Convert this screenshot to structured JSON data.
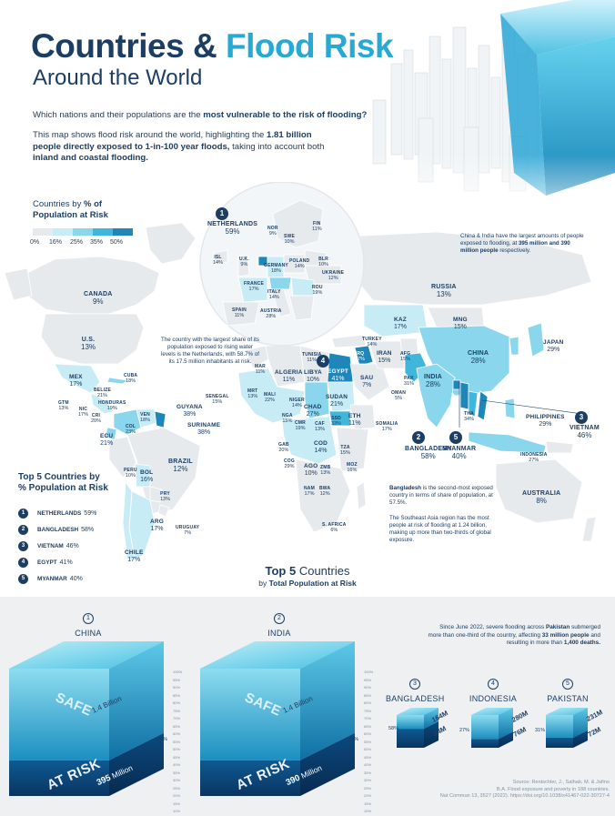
{
  "header": {
    "title_part1": "Countries &",
    "title_part2": "Flood Risk",
    "subtitle": "Around the World",
    "lead_text": "Which nations and their populations are the ",
    "lead_bold": "most vulnerable to the risk of flooding?",
    "para_1": "This map shows flood risk around the world, highlighting the ",
    "para_bold_1": "1.81 billion people directly exposed to 1-in-100 year floods,",
    "para_2": " taking into account both ",
    "para_bold_2": "inland and coastal flooding."
  },
  "legend": {
    "title_1": "Countries by ",
    "title_bold": "% of",
    "title_2": "Population at Risk",
    "ticks": [
      "0%",
      "16%",
      "25%",
      "35%",
      "50%"
    ],
    "colors": [
      "#e6eaed",
      "#c7ecf5",
      "#8ad6ec",
      "#3fb6da",
      "#1e86b8"
    ]
  },
  "colors": {
    "navy": "#1d3e63",
    "accent": "#27a9d4",
    "land": "#dde3e8",
    "land_stroke": "#ffffff",
    "water_dark": "#0b3b6b",
    "bottom_bg": "#eef0f2"
  },
  "map_labels": {
    "netherlands": {
      "name": "NETHERLANDS",
      "value": "59%"
    },
    "norway": {
      "name": "NOR",
      "value": "9%"
    },
    "sweden": {
      "name": "SWE",
      "value": "10%"
    },
    "finland": {
      "name": "FIN",
      "value": "11%"
    },
    "iceland": {
      "name": "ISL",
      "value": "14%"
    },
    "uk": {
      "name": "U.K.",
      "value": "9%"
    },
    "germany": {
      "name": "GERMANY",
      "value": "18%"
    },
    "poland": {
      "name": "POLAND",
      "value": "14%"
    },
    "belarus": {
      "name": "BLR",
      "value": "10%"
    },
    "ukraine": {
      "name": "UKRAINE",
      "value": "12%"
    },
    "france": {
      "name": "FRANCE",
      "value": "17%"
    },
    "italy": {
      "name": "ITALY",
      "value": "14%"
    },
    "romania": {
      "name": "ROU",
      "value": "19%"
    },
    "spain": {
      "name": "SPAIN",
      "value": "11%"
    },
    "austria": {
      "name": "AUSTRIA",
      "value": "28%"
    },
    "russia": {
      "name": "RUSSIA",
      "value": "13%"
    },
    "canada": {
      "name": "CANADA",
      "value": "9%"
    },
    "us": {
      "name": "U.S.",
      "value": "13%"
    },
    "mexico": {
      "name": "MEX",
      "value": "17%"
    },
    "cuba": {
      "name": "CUBA",
      "value": "18%"
    },
    "belize": {
      "name": "BELIZE",
      "value": "21%"
    },
    "honduras": {
      "name": "HONDURAS",
      "value": "19%"
    },
    "guatemala": {
      "name": "GTM",
      "value": "13%"
    },
    "nicaragua": {
      "name": "NIC",
      "value": "17%"
    },
    "costa_rica": {
      "name": "CRI",
      "value": "20%"
    },
    "ecuador": {
      "name": "ECU",
      "value": "21%"
    },
    "colombia": {
      "name": "COL",
      "value": "23%"
    },
    "venezuela": {
      "name": "VEN",
      "value": "18%"
    },
    "guyana": {
      "name": "GUYANA",
      "value": "38%"
    },
    "suriname": {
      "name": "SURINAME",
      "value": "38%"
    },
    "peru": {
      "name": "PERU",
      "value": "10%"
    },
    "bolivia": {
      "name": "BOL",
      "value": "16%"
    },
    "brazil": {
      "name": "BRAZIL",
      "value": "12%"
    },
    "paraguay": {
      "name": "PRY",
      "value": "13%"
    },
    "argentina": {
      "name": "ARG",
      "value": "17%"
    },
    "uruguay": {
      "name": "URUGUAY",
      "value": "7%"
    },
    "chile": {
      "name": "CHILE",
      "value": "17%"
    },
    "morocco": {
      "name": "MAR",
      "value": "11%"
    },
    "algeria": {
      "name": "ALGERIA",
      "value": "11%"
    },
    "tunisia": {
      "name": "TUNISIA",
      "value": "11%"
    },
    "libya": {
      "name": "LIBYA",
      "value": "10%"
    },
    "egypt": {
      "name": "EGYPT",
      "value": "41%"
    },
    "senegal": {
      "name": "SENEGAL",
      "value": "15%"
    },
    "mauritania": {
      "name": "MRT",
      "value": "13%"
    },
    "mali": {
      "name": "MALI",
      "value": "22%"
    },
    "niger": {
      "name": "NIGER",
      "value": "14%"
    },
    "nigeria": {
      "name": "NGA",
      "value": "15%"
    },
    "chad": {
      "name": "CHAD",
      "value": "27%"
    },
    "sudan": {
      "name": "SUDAN",
      "value": "21%"
    },
    "south_sudan": {
      "name": "SSD",
      "value": "33%"
    },
    "ethiopia": {
      "name": "ETH",
      "value": "11%"
    },
    "somalia": {
      "name": "SOMALIA",
      "value": "17%"
    },
    "cameroon": {
      "name": "CMR",
      "value": "19%"
    },
    "car": {
      "name": "CAF",
      "value": "13%"
    },
    "gabon": {
      "name": "GAB",
      "value": "20%"
    },
    "congo": {
      "name": "COG",
      "value": "29%"
    },
    "drc": {
      "name": "COD",
      "value": "14%"
    },
    "tanzania": {
      "name": "TZA",
      "value": "15%"
    },
    "angola": {
      "name": "AGO",
      "value": "10%"
    },
    "zambia": {
      "name": "ZMB",
      "value": "13%"
    },
    "mozambique": {
      "name": "MOZ",
      "value": "16%"
    },
    "namibia": {
      "name": "NAM",
      "value": "17%"
    },
    "botswana": {
      "name": "BWA",
      "value": "12%"
    },
    "south_africa": {
      "name": "S. AFRICA",
      "value": "6%"
    },
    "turkey": {
      "name": "TURKEY",
      "value": "14%"
    },
    "iraq": {
      "name": "IRQ",
      "value": "37%"
    },
    "saudi": {
      "name": "SAU",
      "value": "7%"
    },
    "iran": {
      "name": "IRAN",
      "value": "15%"
    },
    "afghanistan": {
      "name": "AFG",
      "value": "15%"
    },
    "pakistan": {
      "name": "PAK",
      "value": "31%"
    },
    "oman": {
      "name": "OMAN",
      "value": "5%"
    },
    "kazakhstan": {
      "name": "KAZ",
      "value": "17%"
    },
    "mongolia": {
      "name": "MNG",
      "value": "15%"
    },
    "china": {
      "name": "CHINA",
      "value": "28%"
    },
    "japan": {
      "name": "JAPAN",
      "value": "29%"
    },
    "india": {
      "name": "INDIA",
      "value": "28%"
    },
    "bangladesh": {
      "name": "BANGLADESH",
      "value": "58%"
    },
    "myanmar": {
      "name": "MYANMAR",
      "value": "40%"
    },
    "thailand": {
      "name": "THA",
      "value": "34%"
    },
    "vietnam": {
      "name": "VIETNAM",
      "value": "46%"
    },
    "philippines": {
      "name": "PHILIPPINES",
      "value": "29%"
    },
    "indonesia": {
      "name": "INDONESIA",
      "value": "27%"
    },
    "australia": {
      "name": "AUSTRALIA",
      "value": "8%"
    }
  },
  "badges": {
    "netherlands": "1",
    "bangladesh": "2",
    "vietnam": "3",
    "egypt": "4",
    "myanmar": "5"
  },
  "notes": {
    "china_india_1": "China & India have the largest amounts of people exposed to flooding, at ",
    "china_india_bold": "395 million and 390 million people",
    "china_india_2": " respectively.",
    "netherlands": "The country with the largest share of its population exposed to rising water levels is the Netherlands, with 58.7% of its 17.5 million inhabitants at risk.",
    "bangladesh_bold": "Bangladesh",
    "bangladesh": " is the second-most exposed country in terms of share of population, at 57.5%.",
    "seasia": "The Southeast Asia region has the most people at risk of flooding at 1.24 billion, making up more than two-thirds of global exposure."
  },
  "top5_share": {
    "title_1": "Top 5 Countries by",
    "title_bold": "% Population at Risk",
    "items": [
      {
        "rank": "1",
        "name": "NETHERLANDS",
        "value": "59%"
      },
      {
        "rank": "2",
        "name": "BANGLADESH",
        "value": "58%"
      },
      {
        "rank": "3",
        "name": "VIETNAM",
        "value": "46%"
      },
      {
        "rank": "4",
        "name": "EGYPT",
        "value": "41%"
      },
      {
        "rank": "5",
        "name": "MYANMAR",
        "value": "40%"
      }
    ]
  },
  "top5_pop": {
    "title_bold": "Top 5",
    "title": " Countries",
    "subtitle": "by ",
    "subtitle_bold": "Total Population at Risk"
  },
  "cubes": {
    "china": {
      "rank": "1",
      "name": "CHINA",
      "safe": "SAFE",
      "at_risk": "AT RISK",
      "total": "1.4 Billion",
      "risk": "395",
      "risk_unit": " Million",
      "pct": "28%"
    },
    "india": {
      "rank": "2",
      "name": "INDIA",
      "safe": "SAFE",
      "at_risk": "AT RISK",
      "total": "1.4 Billion",
      "risk": "390",
      "risk_unit": " Million",
      "pct": "28%"
    },
    "bangladesh": {
      "rank": "3",
      "name": "BANGLADESH",
      "total": "164M",
      "risk": "94M",
      "pct": "58%"
    },
    "indonesia": {
      "rank": "4",
      "name": "INDONESIA",
      "total": "280M",
      "risk": "76M",
      "pct": "27%"
    },
    "pakistan": {
      "rank": "5",
      "name": "PAKISTAN",
      "total": "231M",
      "risk": "72M",
      "pct": "31%"
    },
    "scale_ticks": [
      "100%",
      "95%",
      "90%",
      "85%",
      "80%",
      "75%",
      "70%",
      "65%",
      "60%",
      "55%",
      "50%",
      "45%",
      "40%",
      "35%",
      "30%",
      "25%",
      "20%",
      "15%",
      "10%",
      "5%"
    ]
  },
  "pakistan_note": {
    "text_1": "Since June 2022, severe flooding across ",
    "bold_1": "Pakistan",
    "text_2": " submerged more than one-third of the country, affecting ",
    "bold_2": "33 million people",
    "text_3": " and resulting in more than ",
    "bold_3": "1,400 deaths."
  },
  "source": {
    "line_1": "Source: Rentschler, J., Salhab, M. & Jafino",
    "line_2": "B.A. Flood exposure and poverty in 188 countries.",
    "line_3": "Nat Commun 13, 3527 (2022). https://doi.org/10.1038/s41467-022-30727-4"
  },
  "chart_data": {
    "type": "bar",
    "title": "Countries & Flood Risk Around the World",
    "legend_scale": [
      "0%",
      "16%",
      "25%",
      "35%",
      "50%"
    ],
    "categories": [
      "CHINA",
      "INDIA",
      "BANGLADESH",
      "INDONESIA",
      "PAKISTAN"
    ],
    "series": [
      {
        "name": "Total Population at Risk",
        "values": [
          395,
          390,
          94,
          76,
          72
        ]
      }
    ],
    "population_total": [
      1400,
      1400,
      164,
      280,
      231
    ],
    "share_at_risk": [
      28,
      28,
      58,
      27,
      31
    ],
    "top5_share": {
      "categories": [
        "NETHERLANDS",
        "BANGLADESH",
        "VIETNAM",
        "EGYPT",
        "MYANMAR"
      ],
      "values": [
        59,
        58,
        46,
        41,
        40
      ]
    }
  }
}
